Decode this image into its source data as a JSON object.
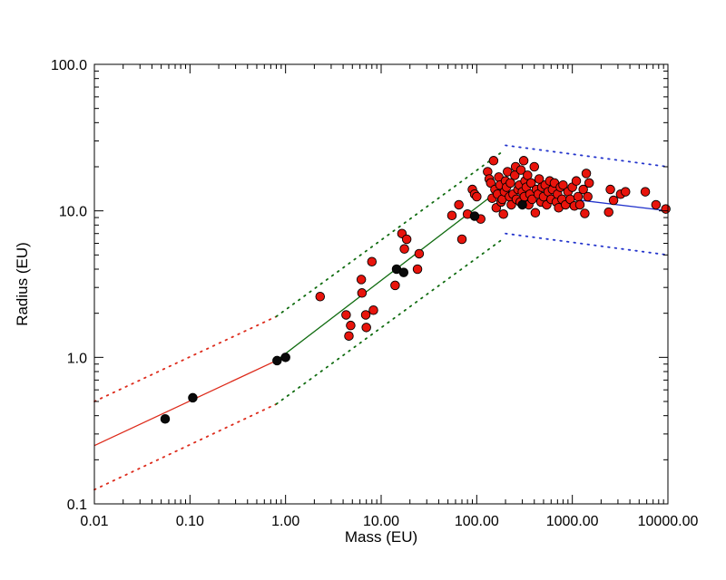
{
  "chart_data": {
    "type": "scatter",
    "title": "",
    "xlabel": "Mass (EU)",
    "ylabel": "Radius (EU)",
    "xscale": "log",
    "yscale": "log",
    "xlim": [
      0.01,
      10000
    ],
    "ylim": [
      0.1,
      100
    ],
    "grid": false,
    "x_ticks": [
      {
        "value": 0.01,
        "label": "0.01"
      },
      {
        "value": 0.1,
        "label": "0.10"
      },
      {
        "value": 1,
        "label": "1.00"
      },
      {
        "value": 10,
        "label": "10.00"
      },
      {
        "value": 100,
        "label": "100.00"
      },
      {
        "value": 1000,
        "label": "1000.00"
      },
      {
        "value": 10000,
        "label": "10000.00"
      }
    ],
    "y_ticks": [
      {
        "value": 0.1,
        "label": "0.1"
      },
      {
        "value": 1,
        "label": "1.0"
      },
      {
        "value": 10,
        "label": "10.0"
      },
      {
        "value": 100,
        "label": "100.0"
      }
    ],
    "colors": {
      "red_points": "#e8140c",
      "black_points": "#0a0a0a",
      "fit_low": "#dd2a1a",
      "fit_mid": "#0f6b0f",
      "fit_high": "#2233cc"
    },
    "fit_lines": [
      {
        "color": "red",
        "points": [
          [
            0.01,
            0.25
          ],
          [
            0.8,
            0.95
          ]
        ]
      },
      {
        "color": "green",
        "points": [
          [
            0.8,
            0.95
          ],
          [
            140,
            12.5
          ]
        ]
      },
      {
        "color": "blue",
        "points": [
          [
            140,
            14
          ],
          [
            10000,
            10
          ]
        ]
      }
    ],
    "bound_lines": [
      {
        "color": "red",
        "points": [
          [
            0.01,
            0.5
          ],
          [
            0.8,
            1.9
          ]
        ]
      },
      {
        "color": "red",
        "points": [
          [
            0.01,
            0.125
          ],
          [
            0.8,
            0.48
          ]
        ]
      },
      {
        "color": "green",
        "points": [
          [
            0.8,
            1.9
          ],
          [
            180,
            25
          ]
        ]
      },
      {
        "color": "green",
        "points": [
          [
            0.8,
            0.48
          ],
          [
            180,
            6.3
          ]
        ]
      },
      {
        "color": "blue",
        "points": [
          [
            200,
            28
          ],
          [
            10000,
            20
          ]
        ]
      },
      {
        "color": "blue",
        "points": [
          [
            200,
            7
          ],
          [
            10000,
            5
          ]
        ]
      }
    ],
    "series": [
      {
        "color": "black",
        "points": [
          [
            0.055,
            0.38
          ],
          [
            0.107,
            0.53
          ],
          [
            0.815,
            0.95
          ],
          [
            1.0,
            1.0
          ],
          [
            14.5,
            4.0
          ],
          [
            17.2,
            3.8
          ],
          [
            95,
            9.2
          ],
          [
            300,
            11.0
          ]
        ]
      },
      {
        "color": "red",
        "points": [
          [
            2.3,
            2.6
          ],
          [
            4.3,
            1.95
          ],
          [
            4.6,
            1.4
          ],
          [
            4.8,
            1.65
          ],
          [
            6.2,
            3.4
          ],
          [
            6.3,
            2.75
          ],
          [
            6.9,
            1.95
          ],
          [
            7.0,
            1.6
          ],
          [
            8.0,
            4.5
          ],
          [
            8.3,
            2.1
          ],
          [
            14.0,
            3.1
          ],
          [
            16.5,
            7.0
          ],
          [
            17.5,
            5.5
          ],
          [
            18.5,
            6.4
          ],
          [
            24.0,
            4.0
          ],
          [
            25.0,
            5.1
          ],
          [
            55.0,
            9.3
          ],
          [
            65.0,
            11.0
          ],
          [
            70.0,
            6.4
          ],
          [
            80.0,
            9.5
          ],
          [
            90.0,
            14.0
          ],
          [
            95.0,
            13.0
          ],
          [
            100.0,
            12.5
          ],
          [
            110.0,
            8.8
          ],
          [
            130.0,
            18.5
          ],
          [
            135.0,
            16.5
          ],
          [
            140.0,
            15.5
          ],
          [
            145.0,
            12.2
          ],
          [
            150.0,
            22.0
          ],
          [
            155.0,
            14.0
          ],
          [
            160.0,
            10.5
          ],
          [
            165.0,
            13.0
          ],
          [
            170.0,
            17.0
          ],
          [
            175.0,
            15.0
          ],
          [
            180.0,
            11.5
          ],
          [
            185.0,
            12.0
          ],
          [
            190.0,
            9.5
          ],
          [
            195.0,
            13.5
          ],
          [
            200.0,
            16.0
          ],
          [
            205.0,
            14.5
          ],
          [
            210.0,
            18.5
          ],
          [
            220.0,
            12.5
          ],
          [
            225.0,
            15.5
          ],
          [
            230.0,
            11.0
          ],
          [
            240.0,
            13.0
          ],
          [
            250.0,
            17.5
          ],
          [
            255.0,
            20.0
          ],
          [
            260.0,
            12.0
          ],
          [
            270.0,
            14.0
          ],
          [
            280.0,
            15.0
          ],
          [
            285.0,
            11.5
          ],
          [
            290.0,
            19.0
          ],
          [
            300.0,
            13.5
          ],
          [
            310.0,
            22.0
          ],
          [
            315.0,
            12.5
          ],
          [
            320.0,
            16.0
          ],
          [
            330.0,
            14.5
          ],
          [
            340.0,
            17.5
          ],
          [
            350.0,
            11.0
          ],
          [
            360.0,
            13.0
          ],
          [
            370.0,
            15.5
          ],
          [
            380.0,
            12.0
          ],
          [
            400.0,
            20.0
          ],
          [
            410.0,
            9.7
          ],
          [
            420.0,
            14.0
          ],
          [
            440.0,
            13.0
          ],
          [
            450.0,
            16.5
          ],
          [
            470.0,
            11.5
          ],
          [
            480.0,
            14.5
          ],
          [
            500.0,
            12.5
          ],
          [
            520.0,
            15.0
          ],
          [
            540.0,
            11.0
          ],
          [
            560.0,
            13.5
          ],
          [
            580.0,
            16.0
          ],
          [
            600.0,
            12.0
          ],
          [
            620.0,
            14.0
          ],
          [
            650.0,
            15.5
          ],
          [
            680.0,
            11.5
          ],
          [
            700.0,
            13.0
          ],
          [
            720.0,
            10.5
          ],
          [
            750.0,
            14.5
          ],
          [
            780.0,
            12.0
          ],
          [
            800.0,
            15.0
          ],
          [
            850.0,
            11.0
          ],
          [
            900.0,
            13.5
          ],
          [
            950.0,
            12.0
          ],
          [
            1000.0,
            14.5
          ],
          [
            1050.0,
            10.8
          ],
          [
            1100.0,
            16.0
          ],
          [
            1150.0,
            12.5
          ],
          [
            1200.0,
            11.0
          ],
          [
            1300.0,
            14.0
          ],
          [
            1350.0,
            9.6
          ],
          [
            1400.0,
            18.0
          ],
          [
            1450.0,
            12.5
          ],
          [
            1500.0,
            15.5
          ],
          [
            2400.0,
            9.8
          ],
          [
            2500.0,
            14.0
          ],
          [
            2700.0,
            11.8
          ],
          [
            3200.0,
            13.0
          ],
          [
            3600.0,
            13.5
          ],
          [
            5800.0,
            13.5
          ],
          [
            7500.0,
            11.0
          ],
          [
            9500.0,
            10.3
          ]
        ]
      }
    ]
  }
}
